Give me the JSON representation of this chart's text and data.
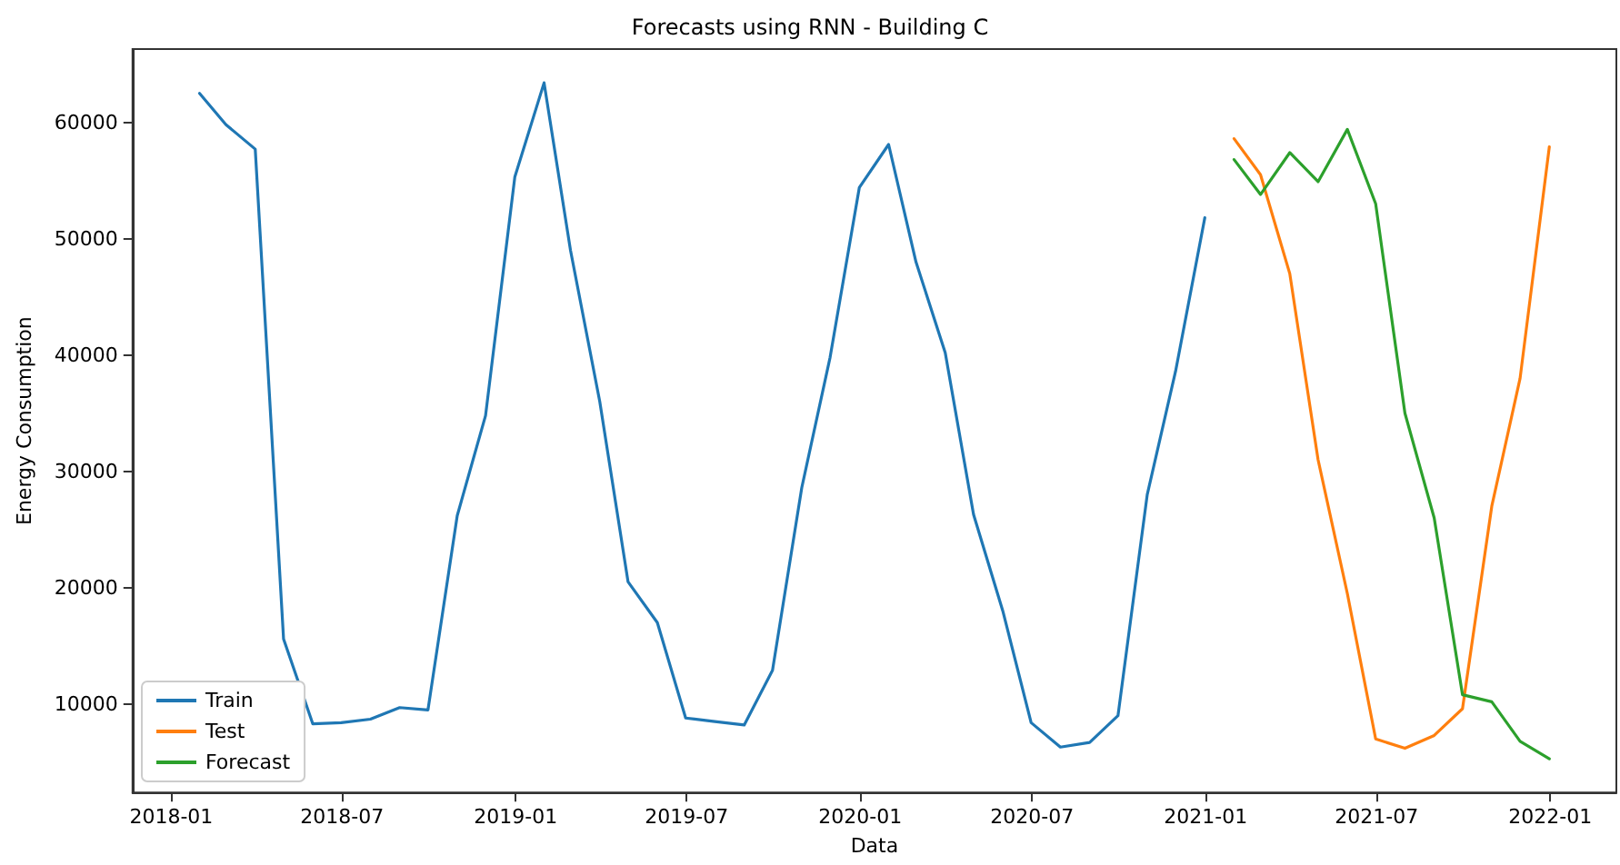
{
  "chart_data": {
    "type": "line",
    "title": "Forecasts using RNN - Building C",
    "xlabel": "Data",
    "ylabel": "Energy Consumption",
    "series": [
      {
        "name": "Train",
        "color": "#1f77b4",
        "x": [
          "2018-01-31",
          "2018-02-28",
          "2018-03-31",
          "2018-04-30",
          "2018-05-31",
          "2018-06-30",
          "2018-07-31",
          "2018-08-31",
          "2018-09-30",
          "2018-10-31",
          "2018-11-30",
          "2018-12-31",
          "2019-01-31",
          "2019-02-28",
          "2019-03-31",
          "2019-04-30",
          "2019-05-31",
          "2019-06-30",
          "2019-07-31",
          "2019-08-31",
          "2019-09-30",
          "2019-10-31",
          "2019-11-30",
          "2019-12-31",
          "2020-01-31",
          "2020-02-29",
          "2020-03-31",
          "2020-04-30",
          "2020-05-31",
          "2020-06-30",
          "2020-07-31",
          "2020-08-31",
          "2020-09-30",
          "2020-10-31",
          "2020-11-30",
          "2020-12-31"
        ],
        "values": [
          62500,
          59800,
          57700,
          15600,
          8300,
          8400,
          8700,
          9700,
          9500,
          26200,
          34800,
          55300,
          63400,
          49000,
          36000,
          20500,
          17000,
          8800,
          8500,
          8200,
          12900,
          28600,
          39800,
          54400,
          58100,
          48000,
          40200,
          26300,
          18000,
          8400,
          6300,
          6700,
          9000,
          28000,
          38600,
          51800
        ]
      },
      {
        "name": "Test",
        "color": "#ff7f0e",
        "x": [
          "2021-01-31",
          "2021-02-28",
          "2021-03-31",
          "2021-04-30",
          "2021-05-31",
          "2021-06-30",
          "2021-07-31",
          "2021-08-31",
          "2021-09-30",
          "2021-10-31",
          "2021-11-30",
          "2021-12-31"
        ],
        "values": [
          58600,
          55500,
          47000,
          31000,
          19500,
          7000,
          6200,
          7300,
          9600,
          27000,
          38000,
          57900
        ]
      },
      {
        "name": "Forecast",
        "color": "#2ca02c",
        "x": [
          "2021-01-31",
          "2021-02-28",
          "2021-03-31",
          "2021-04-30",
          "2021-05-31",
          "2021-06-30",
          "2021-07-31",
          "2021-08-31",
          "2021-09-30",
          "2021-10-31",
          "2021-11-30",
          "2021-12-31"
        ],
        "values": [
          56800,
          53800,
          57400,
          54900,
          59400,
          53000,
          35000,
          26000,
          10800,
          10200,
          6800,
          5300
        ]
      }
    ],
    "xlim": [
      "2017-11-21",
      "2022-03-12"
    ],
    "xticks": [
      {
        "value": "2018-01-01",
        "label": "2018-01"
      },
      {
        "value": "2018-07-01",
        "label": "2018-07"
      },
      {
        "value": "2019-01-01",
        "label": "2019-01"
      },
      {
        "value": "2019-07-01",
        "label": "2019-07"
      },
      {
        "value": "2020-01-01",
        "label": "2020-01"
      },
      {
        "value": "2020-07-01",
        "label": "2020-07"
      },
      {
        "value": "2021-01-01",
        "label": "2021-01"
      },
      {
        "value": "2021-07-01",
        "label": "2021-07"
      },
      {
        "value": "2022-01-01",
        "label": "2022-01"
      }
    ],
    "ylim": [
      2400,
      66300
    ],
    "yticks": [
      10000,
      20000,
      30000,
      40000,
      50000,
      60000
    ],
    "legend": "bottom left",
    "grid": false,
    "marker": "none",
    "line_style": "solid"
  }
}
